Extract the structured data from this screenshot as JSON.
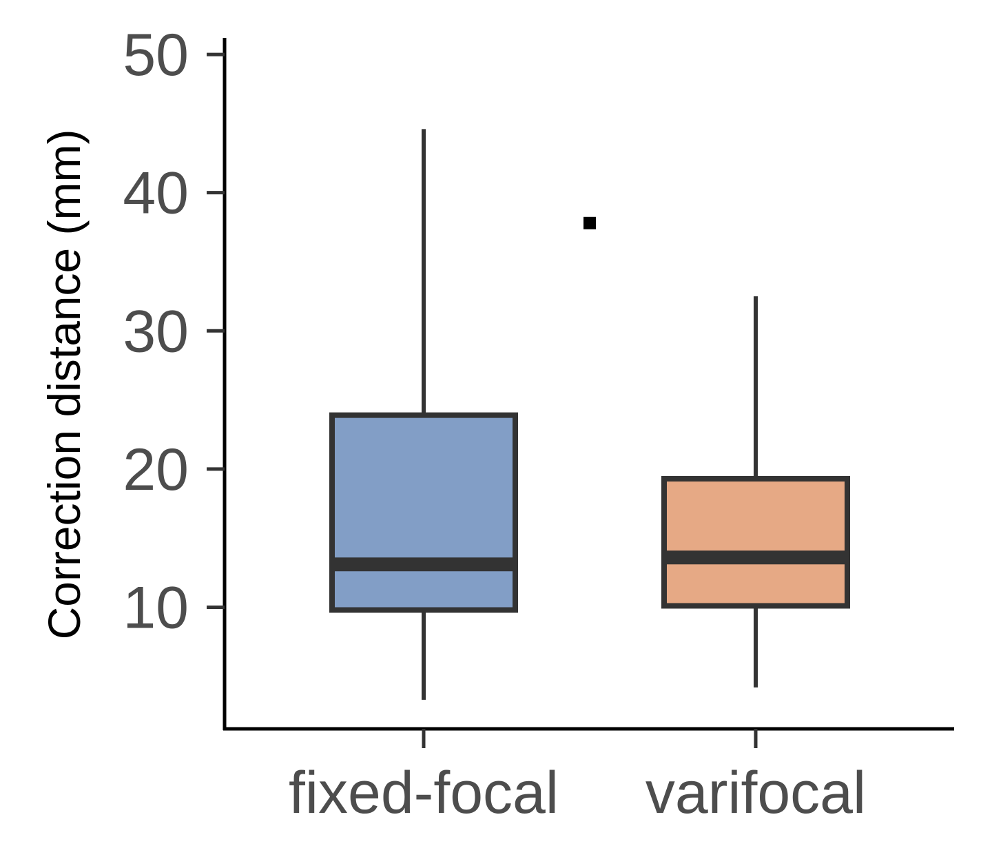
{
  "chart_data": {
    "type": "boxplot",
    "title": "",
    "xlabel": "",
    "ylabel": "Correction distance (mm)",
    "ylim": [
      1.2,
      51.2
    ],
    "yticks": [
      10,
      20,
      30,
      40,
      50
    ],
    "grid": false,
    "legend": "none",
    "categories": [
      "fixed-focal",
      "varifocal"
    ],
    "boxes": [
      {
        "category": "fixed-focal",
        "whisker_low": 3.3,
        "q1": 9.8,
        "median": 13.1,
        "q3": 23.9,
        "whisker_high": 44.6,
        "color": "#829ec6"
      },
      {
        "category": "varifocal",
        "whisker_low": 4.2,
        "q1": 10.1,
        "median": 13.6,
        "q3": 19.3,
        "whisker_high": 32.5,
        "color": "#e6a985"
      }
    ],
    "outliers": [
      {
        "category": "fixed-focal",
        "value": 37.8
      }
    ],
    "colors": {
      "box_edge": "#333333",
      "axis": "#000000",
      "tick_text": "#4d4d4d"
    }
  }
}
